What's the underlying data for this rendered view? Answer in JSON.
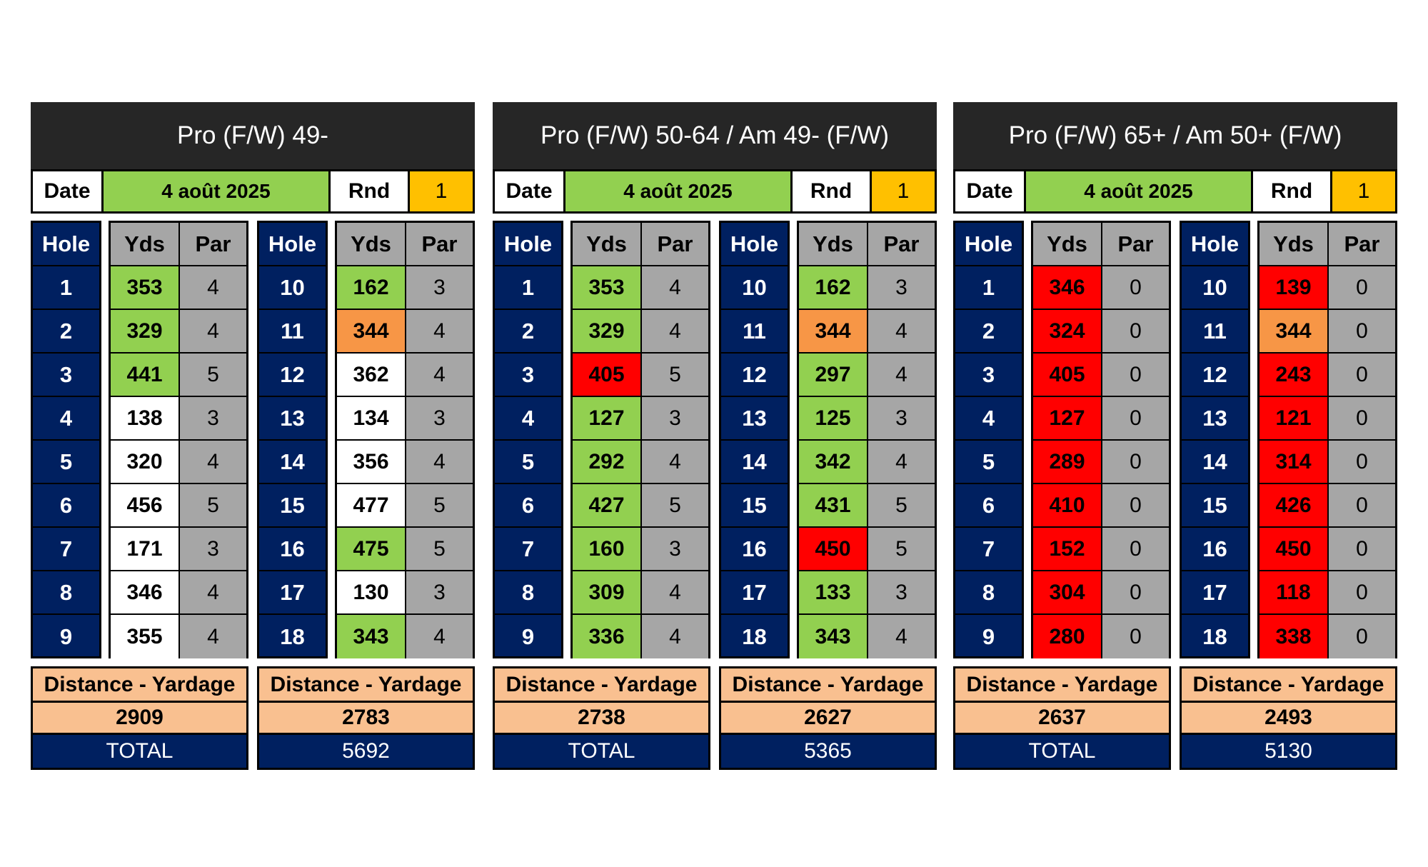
{
  "labels": {
    "date": "Date",
    "rnd": "Rnd",
    "hole": "Hole",
    "yds": "Yds",
    "par": "Par",
    "distance": "Distance - Yardage",
    "total": "TOTAL"
  },
  "panels": [
    {
      "title": "Pro (F/W) 49-",
      "date": "4 août 2025",
      "round": "1",
      "holes": [
        {
          "hole": "1",
          "yds": "353",
          "par": "4",
          "color": "#92d050"
        },
        {
          "hole": "2",
          "yds": "329",
          "par": "4",
          "color": "#92d050"
        },
        {
          "hole": "3",
          "yds": "441",
          "par": "5",
          "color": "#92d050"
        },
        {
          "hole": "4",
          "yds": "138",
          "par": "3",
          "color": "#ffffff"
        },
        {
          "hole": "5",
          "yds": "320",
          "par": "4",
          "color": "#ffffff"
        },
        {
          "hole": "6",
          "yds": "456",
          "par": "5",
          "color": "#ffffff"
        },
        {
          "hole": "7",
          "yds": "171",
          "par": "3",
          "color": "#ffffff"
        },
        {
          "hole": "8",
          "yds": "346",
          "par": "4",
          "color": "#ffffff"
        },
        {
          "hole": "9",
          "yds": "355",
          "par": "4",
          "color": "#ffffff"
        },
        {
          "hole": "10",
          "yds": "162",
          "par": "3",
          "color": "#92d050"
        },
        {
          "hole": "11",
          "yds": "344",
          "par": "4",
          "color": "#f79646"
        },
        {
          "hole": "12",
          "yds": "362",
          "par": "4",
          "color": "#ffffff"
        },
        {
          "hole": "13",
          "yds": "134",
          "par": "3",
          "color": "#ffffff"
        },
        {
          "hole": "14",
          "yds": "356",
          "par": "4",
          "color": "#ffffff"
        },
        {
          "hole": "15",
          "yds": "477",
          "par": "5",
          "color": "#ffffff"
        },
        {
          "hole": "16",
          "yds": "475",
          "par": "5",
          "color": "#92d050"
        },
        {
          "hole": "17",
          "yds": "130",
          "par": "3",
          "color": "#ffffff"
        },
        {
          "hole": "18",
          "yds": "343",
          "par": "4",
          "color": "#92d050"
        }
      ],
      "front_yardage": "2909",
      "back_yardage": "2783",
      "total": "5692"
    },
    {
      "title": "Pro (F/W) 50-64 / Am 49- (F/W)",
      "date": "4 août 2025",
      "round": "1",
      "holes": [
        {
          "hole": "1",
          "yds": "353",
          "par": "4",
          "color": "#92d050"
        },
        {
          "hole": "2",
          "yds": "329",
          "par": "4",
          "color": "#92d050"
        },
        {
          "hole": "3",
          "yds": "405",
          "par": "5",
          "color": "#ff0000"
        },
        {
          "hole": "4",
          "yds": "127",
          "par": "3",
          "color": "#92d050"
        },
        {
          "hole": "5",
          "yds": "292",
          "par": "4",
          "color": "#92d050"
        },
        {
          "hole": "6",
          "yds": "427",
          "par": "5",
          "color": "#92d050"
        },
        {
          "hole": "7",
          "yds": "160",
          "par": "3",
          "color": "#92d050"
        },
        {
          "hole": "8",
          "yds": "309",
          "par": "4",
          "color": "#92d050"
        },
        {
          "hole": "9",
          "yds": "336",
          "par": "4",
          "color": "#92d050"
        },
        {
          "hole": "10",
          "yds": "162",
          "par": "3",
          "color": "#92d050"
        },
        {
          "hole": "11",
          "yds": "344",
          "par": "4",
          "color": "#f79646"
        },
        {
          "hole": "12",
          "yds": "297",
          "par": "4",
          "color": "#92d050"
        },
        {
          "hole": "13",
          "yds": "125",
          "par": "3",
          "color": "#92d050"
        },
        {
          "hole": "14",
          "yds": "342",
          "par": "4",
          "color": "#92d050"
        },
        {
          "hole": "15",
          "yds": "431",
          "par": "5",
          "color": "#92d050"
        },
        {
          "hole": "16",
          "yds": "450",
          "par": "5",
          "color": "#ff0000"
        },
        {
          "hole": "17",
          "yds": "133",
          "par": "3",
          "color": "#92d050"
        },
        {
          "hole": "18",
          "yds": "343",
          "par": "4",
          "color": "#92d050"
        }
      ],
      "front_yardage": "2738",
      "back_yardage": "2627",
      "total": "5365"
    },
    {
      "title": "Pro (F/W) 65+ / Am 50+ (F/W)",
      "date": "4 août 2025",
      "round": "1",
      "holes": [
        {
          "hole": "1",
          "yds": "346",
          "par": "0",
          "color": "#ff0000"
        },
        {
          "hole": "2",
          "yds": "324",
          "par": "0",
          "color": "#ff0000"
        },
        {
          "hole": "3",
          "yds": "405",
          "par": "0",
          "color": "#ff0000"
        },
        {
          "hole": "4",
          "yds": "127",
          "par": "0",
          "color": "#ff0000"
        },
        {
          "hole": "5",
          "yds": "289",
          "par": "0",
          "color": "#ff0000"
        },
        {
          "hole": "6",
          "yds": "410",
          "par": "0",
          "color": "#ff0000"
        },
        {
          "hole": "7",
          "yds": "152",
          "par": "0",
          "color": "#ff0000"
        },
        {
          "hole": "8",
          "yds": "304",
          "par": "0",
          "color": "#ff0000"
        },
        {
          "hole": "9",
          "yds": "280",
          "par": "0",
          "color": "#ff0000"
        },
        {
          "hole": "10",
          "yds": "139",
          "par": "0",
          "color": "#ff0000"
        },
        {
          "hole": "11",
          "yds": "344",
          "par": "0",
          "color": "#f79646"
        },
        {
          "hole": "12",
          "yds": "243",
          "par": "0",
          "color": "#ff0000"
        },
        {
          "hole": "13",
          "yds": "121",
          "par": "0",
          "color": "#ff0000"
        },
        {
          "hole": "14",
          "yds": "314",
          "par": "0",
          "color": "#ff0000"
        },
        {
          "hole": "15",
          "yds": "426",
          "par": "0",
          "color": "#ff0000"
        },
        {
          "hole": "16",
          "yds": "450",
          "par": "0",
          "color": "#ff0000"
        },
        {
          "hole": "17",
          "yds": "118",
          "par": "0",
          "color": "#ff0000"
        },
        {
          "hole": "18",
          "yds": "338",
          "par": "0",
          "color": "#ff0000"
        }
      ],
      "front_yardage": "2637",
      "back_yardage": "2493",
      "total": "5130"
    }
  ]
}
